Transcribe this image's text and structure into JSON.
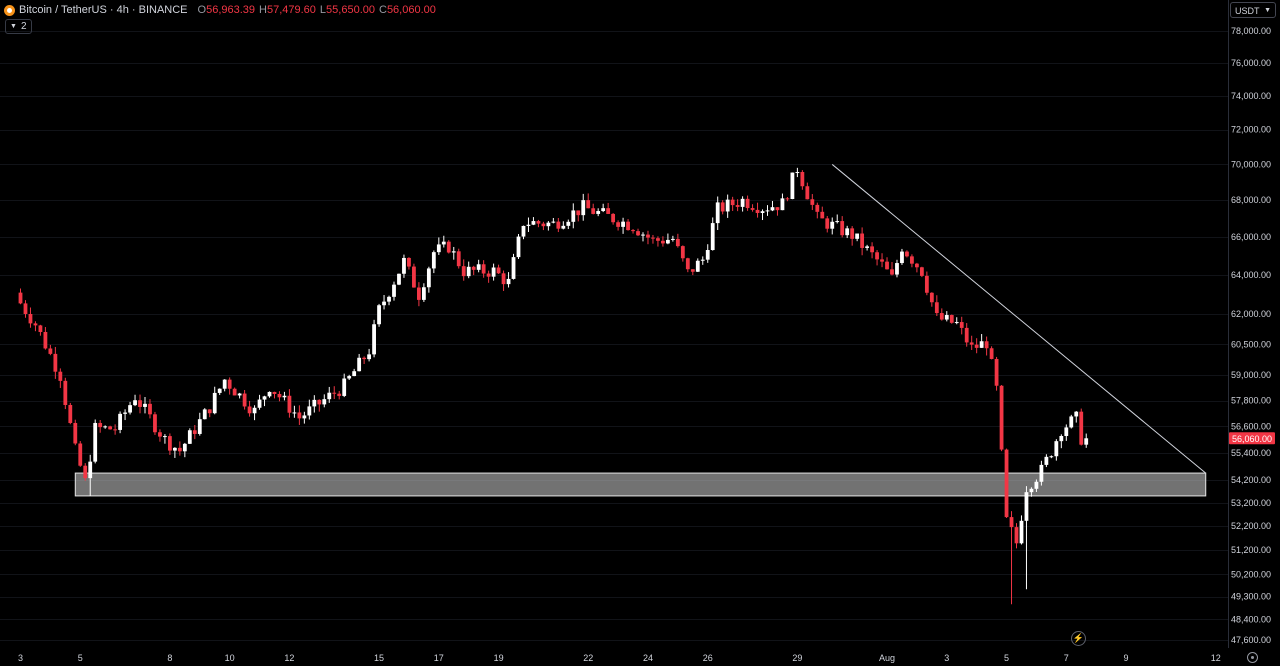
{
  "header": {
    "symbol_icon": "bitcoin-icon",
    "title": "Bitcoin / TetherUS · 4h · BINANCE",
    "ohlc": [
      {
        "label": "O",
        "value": "56,963.39"
      },
      {
        "label": "H",
        "value": "57,479.60"
      },
      {
        "label": "L",
        "value": "55,650.00"
      },
      {
        "label": "C",
        "value": "56,060.00"
      }
    ],
    "indicator_count": "2"
  },
  "currency_selector": "USDT",
  "colors": {
    "up": "#ffffff",
    "down": "#f23645",
    "last_price_bg": "#f23645"
  },
  "chart_data": {
    "type": "candlestick",
    "title": "",
    "xlabel": "",
    "ylabel": "",
    "ylim": [
      47200,
      78800
    ],
    "y_scale": "log",
    "y_ticks": [
      "78,000.00",
      "76,000.00",
      "74,000.00",
      "72,000.00",
      "70,000.00",
      "68,000.00",
      "66,000.00",
      "64,000.00",
      "62,000.00",
      "60,500.00",
      "59,000.00",
      "57,800.00",
      "56,600.00",
      "55,400.00",
      "54,200.00",
      "53,200.00",
      "52,200.00",
      "51,200.00",
      "50,200.00",
      "49,300.00",
      "48,400.00",
      "47,600.00"
    ],
    "x_ticks": [
      "3",
      "5",
      "8",
      "10",
      "12",
      "15",
      "17",
      "19",
      "22",
      "24",
      "26",
      "29",
      "Aug",
      "3",
      "5",
      "7",
      "9",
      "12"
    ],
    "last_price": "56,060.00",
    "waypoints": [
      {
        "date": "2024-07-03 00:00",
        "price": 62900
      },
      {
        "date": "2024-07-03 16:00",
        "price": 61500
      },
      {
        "date": "2024-07-04 12:00",
        "price": 59000
      },
      {
        "date": "2024-07-05 00:00",
        "price": 55500
      },
      {
        "date": "2024-07-05 08:00",
        "price": 54100
      },
      {
        "date": "2024-07-05 16:00",
        "price": 56500
      },
      {
        "date": "2024-07-06 08:00",
        "price": 56500
      },
      {
        "date": "2024-07-07 00:00",
        "price": 58000
      },
      {
        "date": "2024-07-08 00:00",
        "price": 56000
      },
      {
        "date": "2024-07-08 12:00",
        "price": 55500
      },
      {
        "date": "2024-07-09 12:00",
        "price": 57500
      },
      {
        "date": "2024-07-10 00:00",
        "price": 58800
      },
      {
        "date": "2024-07-11 00:00",
        "price": 57300
      },
      {
        "date": "2024-07-11 12:00",
        "price": 58500
      },
      {
        "date": "2024-07-12 12:00",
        "price": 57000
      },
      {
        "date": "2024-07-14 00:00",
        "price": 58500
      },
      {
        "date": "2024-07-14 20:00",
        "price": 60200
      },
      {
        "date": "2024-07-15 04:00",
        "price": 62200
      },
      {
        "date": "2024-07-16 00:00",
        "price": 64700
      },
      {
        "date": "2024-07-16 12:00",
        "price": 63000
      },
      {
        "date": "2024-07-17 00:00",
        "price": 65200
      },
      {
        "date": "2024-07-17 12:00",
        "price": 65500
      },
      {
        "date": "2024-07-18 00:00",
        "price": 64200
      },
      {
        "date": "2024-07-19 00:00",
        "price": 64200
      },
      {
        "date": "2024-07-19 12:00",
        "price": 63600
      },
      {
        "date": "2024-07-20 00:00",
        "price": 66800
      },
      {
        "date": "2024-07-21 00:00",
        "price": 66700
      },
      {
        "date": "2024-07-22 00:00",
        "price": 67600
      },
      {
        "date": "2024-07-23 00:00",
        "price": 67000
      },
      {
        "date": "2024-07-23 16:00",
        "price": 66600
      },
      {
        "date": "2024-07-24 08:00",
        "price": 65800
      },
      {
        "date": "2024-07-25 00:00",
        "price": 65900
      },
      {
        "date": "2024-07-25 12:00",
        "price": 64100
      },
      {
        "date": "2024-07-26 00:00",
        "price": 64800
      },
      {
        "date": "2024-07-26 12:00",
        "price": 67500
      },
      {
        "date": "2024-07-27 08:00",
        "price": 68000
      },
      {
        "date": "2024-07-28 00:00",
        "price": 67600
      },
      {
        "date": "2024-07-28 16:00",
        "price": 67800
      },
      {
        "date": "2024-07-29 04:00",
        "price": 69800
      },
      {
        "date": "2024-07-29 20:00",
        "price": 67000
      },
      {
        "date": "2024-07-31 00:00",
        "price": 66100
      },
      {
        "date": "2024-08-01 00:00",
        "price": 64500
      },
      {
        "date": "2024-08-01 08:00",
        "price": 63800
      },
      {
        "date": "2024-08-01 16:00",
        "price": 65500
      },
      {
        "date": "2024-08-02 08:00",
        "price": 64200
      },
      {
        "date": "2024-08-02 20:00",
        "price": 61800
      },
      {
        "date": "2024-08-03 12:00",
        "price": 61500
      },
      {
        "date": "2024-08-04 00:00",
        "price": 60300
      },
      {
        "date": "2024-08-04 12:00",
        "price": 60600
      },
      {
        "date": "2024-08-04 20:00",
        "price": 58300
      },
      {
        "date": "2024-08-05 04:00",
        "price": 52400
      },
      {
        "date": "2024-08-05 12:00",
        "price": 51500
      },
      {
        "date": "2024-08-05 20:00",
        "price": 53900
      },
      {
        "date": "2024-08-06 08:00",
        "price": 54600
      },
      {
        "date": "2024-08-06 16:00",
        "price": 55500
      },
      {
        "date": "2024-08-07 00:00",
        "price": 56500
      },
      {
        "date": "2024-08-07 12:00",
        "price": 56960
      },
      {
        "date": "2024-08-07 16:00",
        "price": 56060
      }
    ],
    "key_lows": [
      {
        "date": "2024-07-05 08:00",
        "low": 53500
      },
      {
        "date": "2024-08-05 04:00",
        "low": 49000
      },
      {
        "date": "2024-08-05 16:00",
        "low": 49600
      }
    ],
    "annotations": {
      "support_zone": {
        "from": "2024-07-04 20:00",
        "to": "2024-08-11 16:00",
        "low": 53500,
        "high": 54500
      },
      "trendline": {
        "start": {
          "date": "2024-07-30 04:00",
          "price": 70000
        },
        "end": {
          "date": "2024-08-11 16:00",
          "price": 54500
        }
      }
    }
  }
}
